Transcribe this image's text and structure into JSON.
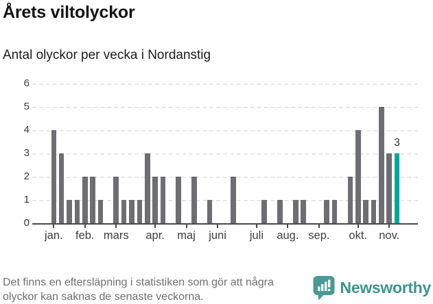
{
  "header": {
    "title": "Årets viltolyckor",
    "subtitle": "Antal olyckor per vecka i Nordanstig"
  },
  "chart_data": {
    "type": "bar",
    "title": "Årets viltolyckor",
    "subtitle": "Antal olyckor per vecka i Nordanstig",
    "x_unit": "vecka (week of year)",
    "ylim": [
      0,
      6
    ],
    "ytick_labels": [
      "0",
      "1",
      "2",
      "3",
      "4",
      "5",
      "6"
    ],
    "grid": true,
    "weekly_values": [
      4,
      3,
      1,
      1,
      2,
      2,
      1,
      0,
      2,
      1,
      1,
      1,
      3,
      2,
      2,
      0,
      2,
      0,
      2,
      0,
      1,
      0,
      0,
      2,
      0,
      0,
      0,
      1,
      0,
      1,
      0,
      1,
      1,
      0,
      0,
      1,
      1,
      0,
      2,
      4,
      1,
      1,
      5,
      3,
      3
    ],
    "bar_color": "#6d6d72",
    "highlight_color": "#00a79c",
    "highlight_index": 44,
    "annotation": {
      "text": "3",
      "week_index": 44
    },
    "month_ticks": [
      {
        "label": "jan.",
        "week": 1
      },
      {
        "label": "feb.",
        "week": 5
      },
      {
        "label": "mars",
        "week": 9
      },
      {
        "label": "apr.",
        "week": 14
      },
      {
        "label": "maj",
        "week": 18
      },
      {
        "label": "juni",
        "week": 22
      },
      {
        "label": "juli",
        "week": 27
      },
      {
        "label": "aug.",
        "week": 31
      },
      {
        "label": "sep.",
        "week": 35
      },
      {
        "label": "okt.",
        "week": 40
      },
      {
        "label": "nov.",
        "week": 44
      }
    ],
    "legend": null
  },
  "footer": {
    "note_line1": "Det finns en eftersläpning i statistiken som gör att några",
    "note_line2": "olyckor kan saknas de senaste veckorna.",
    "brand": "Newsworthy",
    "brand_color": "#3f948e"
  }
}
